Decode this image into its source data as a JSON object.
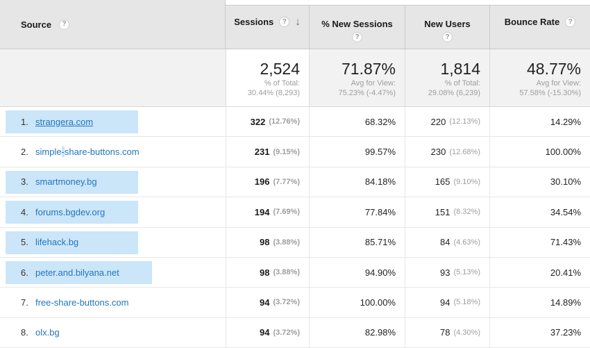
{
  "columns": {
    "source": {
      "label": "Source"
    },
    "sessions": {
      "label": "Sessions"
    },
    "new_sessions": {
      "label": "% New Sessions"
    },
    "new_users": {
      "label": "New Users"
    },
    "bounce_rate": {
      "label": "Bounce Rate"
    }
  },
  "help_icon": "?",
  "sort_arrow": "↓",
  "sorted_column": "Sessions",
  "summary": {
    "sessions": {
      "value": "2,524",
      "line1": "% of Total:",
      "line2": "30.44% (8,293)"
    },
    "new_sessions": {
      "value": "71.87%",
      "line1": "Avg for View:",
      "line2": "75.23% (-4.47%)"
    },
    "new_users": {
      "value": "1,814",
      "line1": "% of Total:",
      "line2": "29.08% (6,239)"
    },
    "bounce_rate": {
      "value": "48.77%",
      "line1": "Avg for View:",
      "line2": "57.58% (-15.30%)"
    }
  },
  "rows": [
    {
      "rank": "1.",
      "name_prefix": "strangera.com",
      "name_sel": "",
      "name_suffix": "",
      "sessions": "322",
      "sessions_pct": "(12.76%)",
      "new_sessions": "68.32%",
      "new_users": "220",
      "new_users_pct": "(12.13%)",
      "bounce_rate": "14.29%",
      "selected": true,
      "hover": true
    },
    {
      "rank": "2.",
      "name_prefix": "simple",
      "name_sel": "-",
      "name_suffix": "share-buttons.com",
      "sessions": "231",
      "sessions_pct": "(9.15%)",
      "new_sessions": "99.57%",
      "new_users": "230",
      "new_users_pct": "(12.68%)",
      "bounce_rate": "100.00%",
      "selected": false,
      "hover": false
    },
    {
      "rank": "3.",
      "name_prefix": "smartmoney.bg",
      "name_sel": "",
      "name_suffix": "",
      "sessions": "196",
      "sessions_pct": "(7.77%)",
      "new_sessions": "84.18%",
      "new_users": "165",
      "new_users_pct": "(9.10%)",
      "bounce_rate": "30.10%",
      "selected": true,
      "hover": false
    },
    {
      "rank": "4.",
      "name_prefix": "forums.bgdev.org",
      "name_sel": "",
      "name_suffix": "",
      "sessions": "194",
      "sessions_pct": "(7.69%)",
      "new_sessions": "77.84%",
      "new_users": "151",
      "new_users_pct": "(8.32%)",
      "bounce_rate": "34.54%",
      "selected": true,
      "hover": false
    },
    {
      "rank": "5.",
      "name_prefix": "lifehack.bg",
      "name_sel": "",
      "name_suffix": "",
      "sessions": "98",
      "sessions_pct": "(3.88%)",
      "new_sessions": "85.71%",
      "new_users": "84",
      "new_users_pct": "(4.63%)",
      "bounce_rate": "71.43%",
      "selected": true,
      "hover": false
    },
    {
      "rank": "6.",
      "name_prefix": "peter.and.bilyana.net",
      "name_sel": "",
      "name_suffix": "",
      "sessions": "98",
      "sessions_pct": "(3.88%)",
      "new_sessions": "94.90%",
      "new_users": "93",
      "new_users_pct": "(5.13%)",
      "bounce_rate": "20.41%",
      "selected": true,
      "hover": false
    },
    {
      "rank": "7.",
      "name_prefix": "free-share-buttons.com",
      "name_sel": "",
      "name_suffix": "",
      "sessions": "94",
      "sessions_pct": "(3.72%)",
      "new_sessions": "100.00%",
      "new_users": "94",
      "new_users_pct": "(5.18%)",
      "bounce_rate": "14.89%",
      "selected": false,
      "hover": false
    },
    {
      "rank": "8.",
      "name_prefix": "olx.bg",
      "name_sel": "",
      "name_suffix": "",
      "sessions": "94",
      "sessions_pct": "(3.72%)",
      "new_sessions": "82.98%",
      "new_users": "78",
      "new_users_pct": "(4.30%)",
      "bounce_rate": "37.23%",
      "selected": false,
      "hover": false
    }
  ],
  "colors": {
    "header_bg": "#e6e6e6",
    "summary_bg": "#f2f2f2",
    "selected_summary_cell_bg": "#ffffff",
    "link_blue": "#2276bd",
    "selection_highlight": "#cbe5f9",
    "muted_text": "#9d9d9d",
    "border": "#e7e7e7"
  }
}
